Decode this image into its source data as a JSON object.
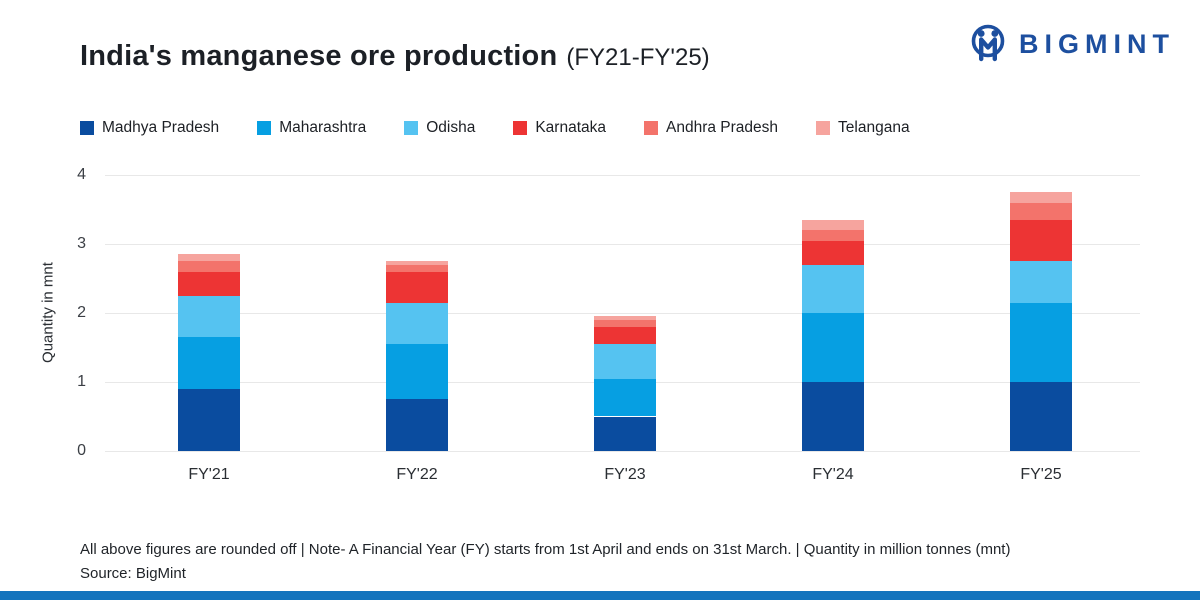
{
  "header": {
    "title": "India's manganese ore production",
    "title_suffix": "(FY21-FY'25)",
    "brand_name": "BIGMINT",
    "brand_color": "#1d4f9f"
  },
  "chart_data": {
    "type": "bar",
    "stacked": true,
    "title": "India's manganese ore production (FY21-FY'25)",
    "categories": [
      "FY'21",
      "FY'22",
      "FY'23",
      "FY'24",
      "FY'25"
    ],
    "series": [
      {
        "name": "Madhya Pradesh",
        "color": "#0a4c9f",
        "values": [
          0.9,
          0.75,
          0.5,
          1.0,
          1.0
        ]
      },
      {
        "name": "Maharashtra",
        "color": "#069fe2",
        "values": [
          0.75,
          0.8,
          0.55,
          1.0,
          1.15
        ]
      },
      {
        "name": "Odisha",
        "color": "#55c3f1",
        "values": [
          0.6,
          0.6,
          0.5,
          0.7,
          0.6
        ]
      },
      {
        "name": "Karnataka",
        "color": "#ed3434",
        "values": [
          0.35,
          0.45,
          0.25,
          0.35,
          0.6
        ]
      },
      {
        "name": "Andhra Pradesh",
        "color": "#f3736b",
        "values": [
          0.15,
          0.1,
          0.1,
          0.15,
          0.25
        ]
      },
      {
        "name": "Telangana",
        "color": "#f6a49e",
        "values": [
          0.1,
          0.05,
          0.05,
          0.15,
          0.15
        ]
      }
    ],
    "totals": [
      2.85,
      2.75,
      1.95,
      3.35,
      3.75
    ],
    "xlabel": "",
    "ylabel": "Quantity in mnt",
    "ylim": [
      0,
      4
    ],
    "yticks": [
      0,
      1,
      2,
      3,
      4
    ],
    "grid": true,
    "legend_position": "top",
    "units": "million tonnes (mnt)"
  },
  "footer": {
    "note": "All above figures are rounded off | Note- A Financial Year (FY) starts from 1st April and ends on 31st March. | Quantity in million tonnes (mnt)",
    "source": "Source: BigMint"
  },
  "theme": {
    "background": "#ffffff",
    "gridline_color": "#e8e8e8",
    "text_color": "#1c2026",
    "bottom_bar_color": "#1474bd"
  }
}
